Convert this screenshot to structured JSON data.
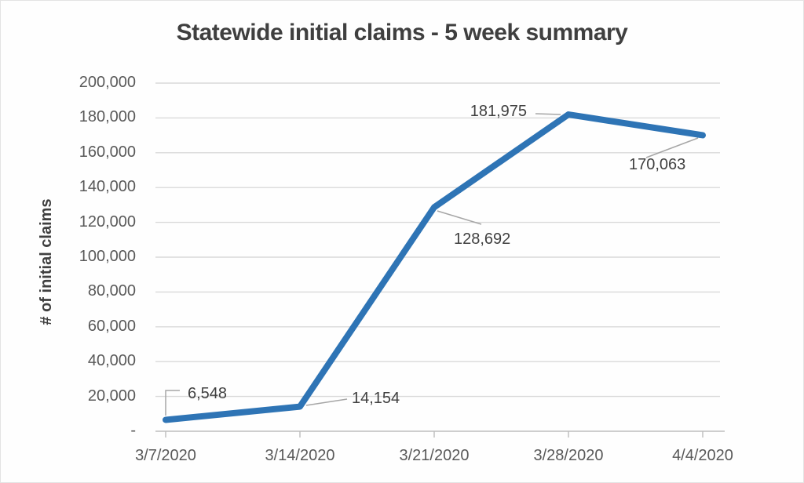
{
  "title": "Statewide initial claims - 5 week summary",
  "colors": {
    "series_line": "#2E74B5",
    "gridline": "#D9D9D9",
    "axis_line": "#BDBDBD",
    "leader_line": "#A6A6A6",
    "tick_text": "#595959",
    "title_text": "#3F3F3F",
    "data_label_text": "#404040"
  },
  "chart_data": {
    "type": "line",
    "title": "Statewide initial claims - 5 week summary",
    "xlabel": "",
    "ylabel": "# of initial claims",
    "categories": [
      "3/7/2020",
      "3/14/2020",
      "3/21/2020",
      "3/28/2020",
      "4/4/2020"
    ],
    "series": [
      {
        "name": "Statewide initial claims",
        "values": [
          6548,
          14154,
          128692,
          181975,
          170063
        ]
      }
    ],
    "point_labels": [
      "6,548",
      "14,154",
      "128,692",
      "181,975",
      "170,063"
    ],
    "y_ticks": {
      "values": [
        0,
        20000,
        40000,
        60000,
        80000,
        100000,
        120000,
        140000,
        160000,
        180000,
        200000
      ],
      "labels": [
        "-",
        "20,000",
        "40,000",
        "60,000",
        "80,000",
        "100,000",
        "120,000",
        "140,000",
        "160,000",
        "180,000",
        "200,000"
      ]
    },
    "ylim": [
      0,
      200000
    ],
    "grid": "horizontal",
    "legend": "none"
  }
}
